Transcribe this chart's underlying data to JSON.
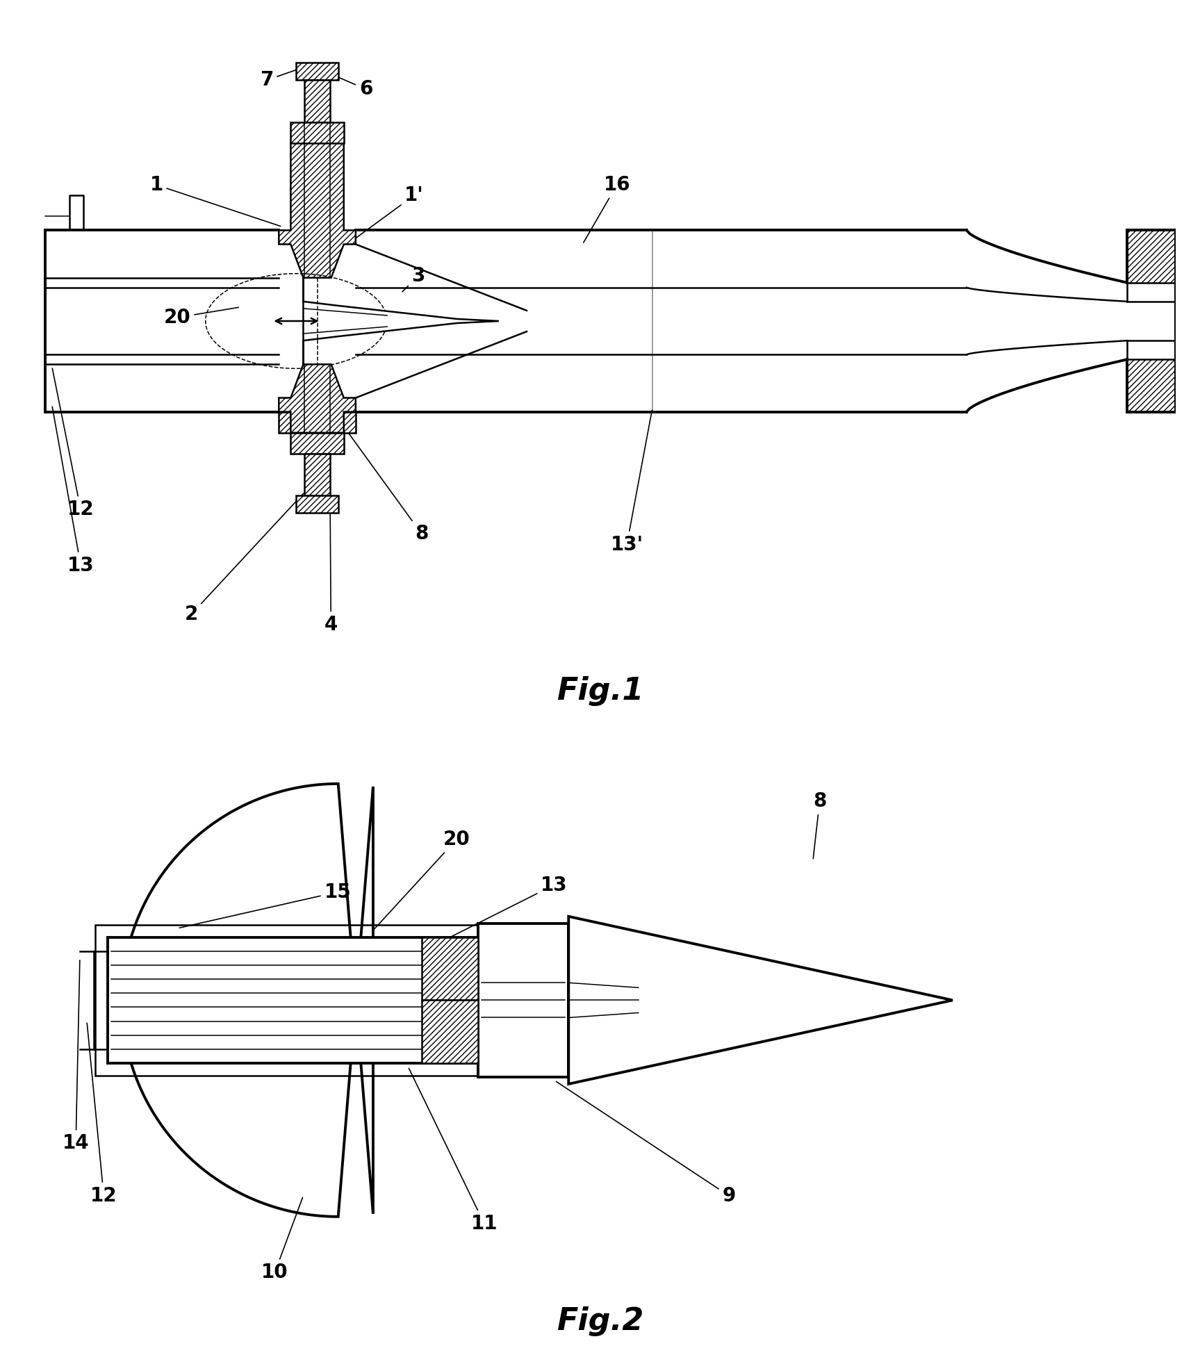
{
  "fig_width": 17.27,
  "fig_height": 19.73,
  "bg_color": "#ffffff",
  "line_color": "#000000"
}
